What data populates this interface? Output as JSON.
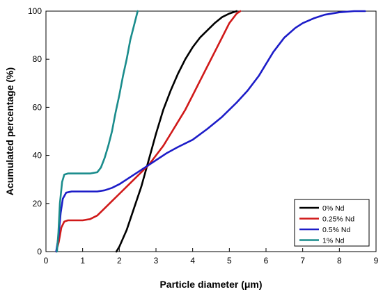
{
  "chart_data": {
    "type": "line",
    "xlabel": "Particle diameter (μm)",
    "ylabel": "Acumulated percentage (%)",
    "xlim": [
      0,
      9
    ],
    "ylim": [
      0,
      100
    ],
    "xticks": [
      0,
      1,
      2,
      3,
      4,
      5,
      6,
      7,
      8,
      9
    ],
    "yticks": [
      0,
      20,
      40,
      60,
      80,
      100
    ],
    "grid": false,
    "legend_position": "bottom-right",
    "series": [
      {
        "name": "0% Nd",
        "color": "#000000",
        "points": [
          [
            1.92,
            0
          ],
          [
            2.0,
            2
          ],
          [
            2.2,
            9
          ],
          [
            2.4,
            18
          ],
          [
            2.6,
            27
          ],
          [
            2.8,
            38
          ],
          [
            3.0,
            49
          ],
          [
            3.2,
            59
          ],
          [
            3.4,
            67
          ],
          [
            3.6,
            74
          ],
          [
            3.8,
            80
          ],
          [
            4.0,
            85
          ],
          [
            4.2,
            89
          ],
          [
            4.4,
            92
          ],
          [
            4.6,
            95
          ],
          [
            4.8,
            97.5
          ],
          [
            5.0,
            99
          ],
          [
            5.2,
            100
          ]
        ]
      },
      {
        "name": "0.25% Nd",
        "color": "#d01919",
        "points": [
          [
            0.28,
            0
          ],
          [
            0.35,
            4
          ],
          [
            0.42,
            10
          ],
          [
            0.5,
            12.5
          ],
          [
            0.6,
            13
          ],
          [
            0.8,
            13
          ],
          [
            1.0,
            13
          ],
          [
            1.2,
            13.5
          ],
          [
            1.4,
            15
          ],
          [
            1.6,
            18
          ],
          [
            1.8,
            21
          ],
          [
            2.0,
            24
          ],
          [
            2.2,
            27
          ],
          [
            2.4,
            30
          ],
          [
            2.6,
            33
          ],
          [
            2.8,
            36
          ],
          [
            3.0,
            40
          ],
          [
            3.2,
            44
          ],
          [
            3.4,
            49
          ],
          [
            3.6,
            54
          ],
          [
            3.8,
            59
          ],
          [
            4.0,
            65
          ],
          [
            4.2,
            71
          ],
          [
            4.4,
            77
          ],
          [
            4.6,
            83
          ],
          [
            4.8,
            89
          ],
          [
            5.0,
            95
          ],
          [
            5.2,
            99
          ],
          [
            5.3,
            100
          ]
        ]
      },
      {
        "name": "0.5% Nd",
        "color": "#1c1cc8",
        "points": [
          [
            0.28,
            0
          ],
          [
            0.34,
            6
          ],
          [
            0.4,
            16
          ],
          [
            0.46,
            22
          ],
          [
            0.55,
            24.5
          ],
          [
            0.7,
            25
          ],
          [
            1.0,
            25
          ],
          [
            1.4,
            25
          ],
          [
            1.6,
            25.5
          ],
          [
            1.8,
            26.5
          ],
          [
            2.0,
            28
          ],
          [
            2.2,
            30
          ],
          [
            2.4,
            32
          ],
          [
            2.6,
            34
          ],
          [
            2.8,
            36
          ],
          [
            3.0,
            38
          ],
          [
            3.3,
            41
          ],
          [
            3.6,
            43.5
          ],
          [
            4.0,
            46.5
          ],
          [
            4.4,
            51
          ],
          [
            4.8,
            56
          ],
          [
            5.2,
            62
          ],
          [
            5.5,
            67
          ],
          [
            5.8,
            73
          ],
          [
            6.0,
            78
          ],
          [
            6.2,
            83
          ],
          [
            6.5,
            89
          ],
          [
            6.8,
            93
          ],
          [
            7.0,
            95
          ],
          [
            7.3,
            97
          ],
          [
            7.6,
            98.5
          ],
          [
            8.0,
            99.5
          ],
          [
            8.4,
            100
          ],
          [
            8.7,
            100
          ]
        ]
      },
      {
        "name": "1% Nd",
        "color": "#1a8c8c",
        "points": [
          [
            0.3,
            0
          ],
          [
            0.34,
            8
          ],
          [
            0.38,
            20
          ],
          [
            0.44,
            29
          ],
          [
            0.5,
            32
          ],
          [
            0.6,
            32.5
          ],
          [
            0.9,
            32.5
          ],
          [
            1.2,
            32.5
          ],
          [
            1.4,
            33
          ],
          [
            1.5,
            35
          ],
          [
            1.6,
            39
          ],
          [
            1.7,
            44
          ],
          [
            1.8,
            50
          ],
          [
            1.9,
            58
          ],
          [
            2.0,
            65
          ],
          [
            2.1,
            73
          ],
          [
            2.2,
            80
          ],
          [
            2.3,
            88
          ],
          [
            2.4,
            94
          ],
          [
            2.5,
            100
          ]
        ]
      }
    ]
  }
}
